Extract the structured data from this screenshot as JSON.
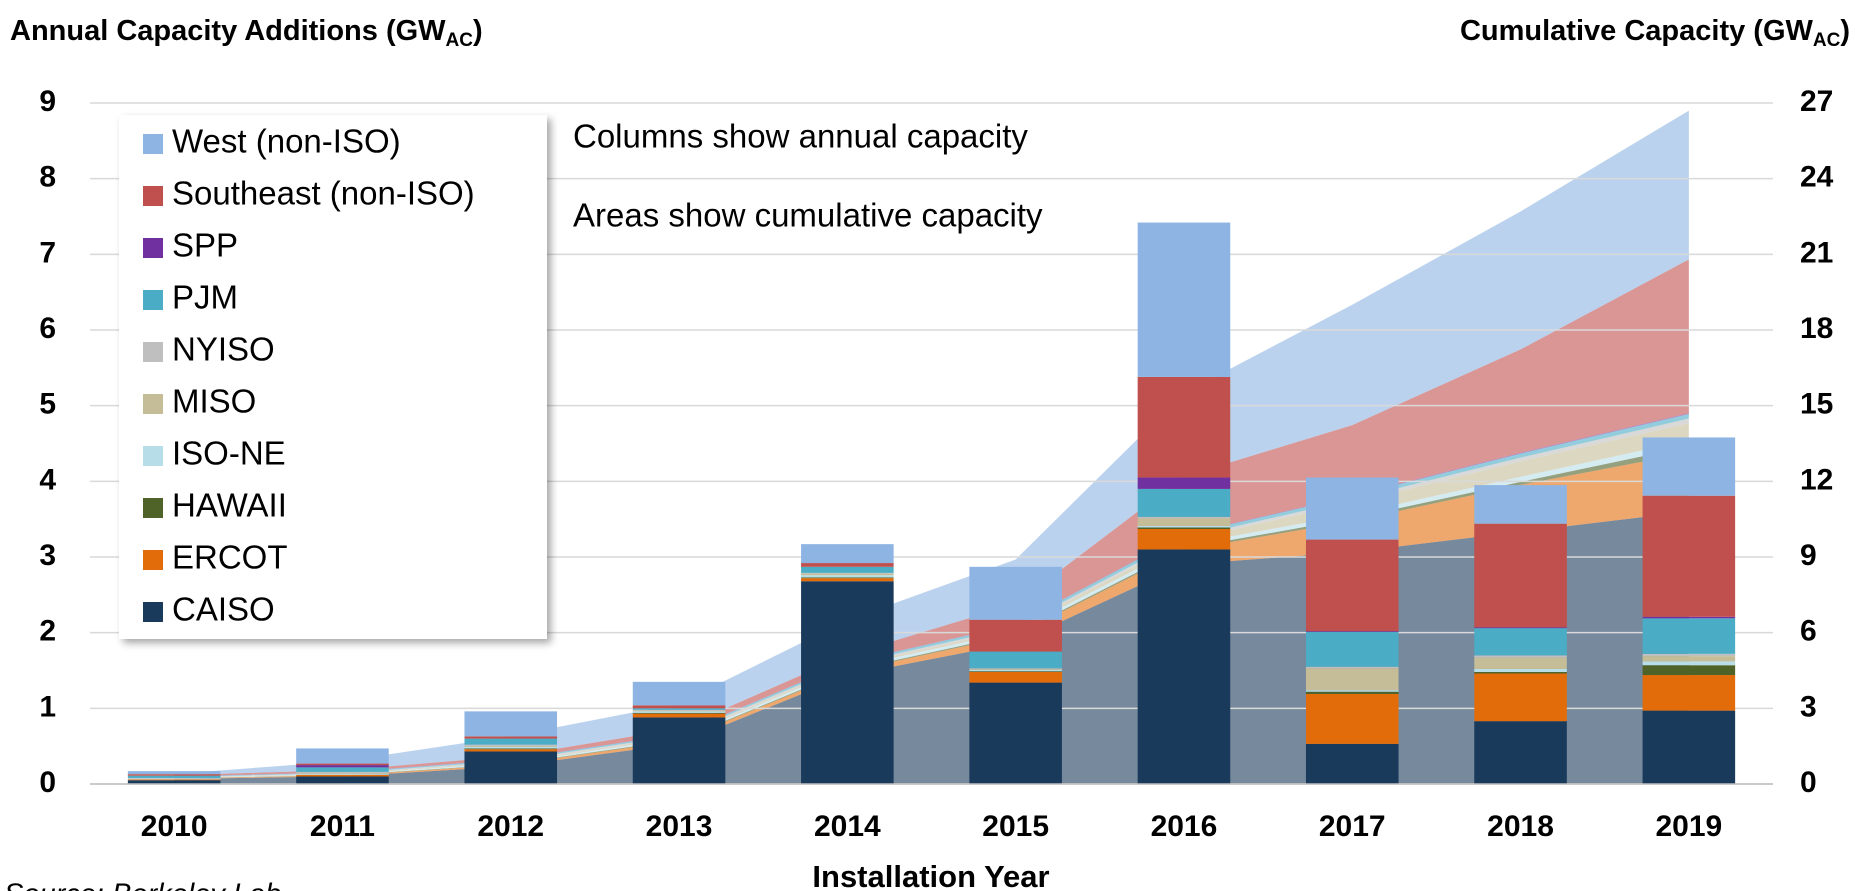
{
  "chart_data": {
    "type": "bar",
    "ylabel": {
      "text": "Annual Capacity Additions (GW",
      "sub": "AC",
      "end": ")"
    },
    "y2label": {
      "text": "Cumulative Capacity (GW",
      "sub": "AC",
      "end": ")"
    },
    "xlabel": "Installation Year",
    "annotations": [
      "Columns show annual capacity",
      "Areas show cumulative capacity"
    ],
    "source": "Source: Berkeley Lab",
    "categories": [
      "2010",
      "2011",
      "2012",
      "2013",
      "2014",
      "2015",
      "2016",
      "2017",
      "2018",
      "2019"
    ],
    "ylim": [
      0,
      9
    ],
    "yticks": [
      0,
      1,
      2,
      3,
      4,
      5,
      6,
      7,
      8,
      9
    ],
    "y2lim": [
      0,
      27
    ],
    "y2ticks": [
      0,
      3,
      6,
      9,
      12,
      15,
      18,
      21,
      24,
      27
    ],
    "grid": true,
    "legend": "upper left",
    "series": [
      {
        "name": "CAISO",
        "color": "#1a3a5c",
        "values": [
          0.05,
          0.1,
          0.43,
          0.88,
          2.68,
          1.34,
          3.1,
          0.53,
          0.83,
          0.97
        ],
        "cumulative": {
          "axis": "y2",
          "values": [
            0.2,
            0.3,
            0.7,
            1.6,
            4.3,
            5.6,
            8.7,
            9.2,
            10.0,
            10.8
          ]
        }
      },
      {
        "name": "ERCOT",
        "color": "#e36c0a",
        "values": [
          0.01,
          0.02,
          0.03,
          0.05,
          0.04,
          0.14,
          0.27,
          0.66,
          0.63,
          0.47
        ],
        "cumulative": {
          "axis": "y2",
          "values": [
            0.02,
            0.04,
            0.07,
            0.12,
            0.16,
            0.3,
            0.57,
            1.23,
            1.86,
            2.33
          ]
        }
      },
      {
        "name": "HAWAII",
        "color": "#4f6228",
        "values": [
          0,
          0,
          0.01,
          0.01,
          0.01,
          0.01,
          0.02,
          0.03,
          0.02,
          0.13
        ],
        "cumulative": {
          "axis": "y2",
          "values": [
            0.01,
            0.01,
            0.02,
            0.03,
            0.04,
            0.05,
            0.07,
            0.1,
            0.12,
            0.25
          ]
        }
      },
      {
        "name": "ISO-NE",
        "color": "#b7dee8",
        "values": [
          0.01,
          0.01,
          0.02,
          0.02,
          0.03,
          0.02,
          0.02,
          0.02,
          0.04,
          0.05
        ],
        "cumulative": {
          "axis": "y2",
          "values": [
            0.02,
            0.03,
            0.05,
            0.07,
            0.1,
            0.12,
            0.14,
            0.16,
            0.2,
            0.25
          ]
        }
      },
      {
        "name": "MISO",
        "color": "#c4bd97",
        "values": [
          0,
          0.01,
          0.01,
          0.01,
          0.02,
          0.01,
          0.1,
          0.29,
          0.15,
          0.07
        ],
        "cumulative": {
          "axis": "y2",
          "values": [
            0.01,
            0.02,
            0.03,
            0.04,
            0.06,
            0.07,
            0.17,
            0.46,
            0.61,
            0.68
          ]
        }
      },
      {
        "name": "NYISO",
        "color": "#bfbfbf",
        "values": [
          0.01,
          0.02,
          0.02,
          0.01,
          0.01,
          0.01,
          0.02,
          0.02,
          0.03,
          0.03
        ],
        "cumulative": {
          "axis": "y2",
          "values": [
            0.01,
            0.03,
            0.05,
            0.06,
            0.07,
            0.08,
            0.1,
            0.12,
            0.15,
            0.18
          ]
        }
      },
      {
        "name": "PJM",
        "color": "#4bacc6",
        "values": [
          0.03,
          0.06,
          0.08,
          0.02,
          0.08,
          0.22,
          0.37,
          0.46,
          0.36,
          0.47
        ],
        "cumulative": {
          "axis": "y2",
          "values": [
            0.02,
            0.03,
            0.05,
            0.06,
            0.08,
            0.1,
            0.12,
            0.14,
            0.16,
            0.18
          ]
        }
      },
      {
        "name": "SPP",
        "color": "#7030a0",
        "values": [
          0,
          0.03,
          0,
          0,
          0,
          0,
          0.15,
          0.01,
          0.01,
          0.02
        ],
        "cumulative": {
          "axis": "y2",
          "values": [
            0.01,
            0.01,
            0.01,
            0.01,
            0.01,
            0.01,
            0.02,
            0.02,
            0.03,
            0.03
          ]
        }
      },
      {
        "name": "Southeast (non-ISO)",
        "color": "#c0504d",
        "values": [
          0.02,
          0.02,
          0.03,
          0.04,
          0.05,
          0.42,
          1.33,
          1.21,
          1.37,
          1.6
        ],
        "cumulative": {
          "axis": "y2",
          "values": [
            0.05,
            0.08,
            0.12,
            0.2,
            0.3,
            0.8,
            2.3,
            2.8,
            4.1,
            6.1
          ]
        }
      },
      {
        "name": "West (non-ISO)",
        "color": "#8eb4e3",
        "values": [
          0.04,
          0.2,
          0.33,
          0.31,
          0.25,
          0.7,
          2.04,
          0.82,
          0.51,
          0.77
        ],
        "cumulative": {
          "axis": "y2",
          "values": [
            0.05,
            0.35,
            0.8,
            1.0,
            1.38,
            1.77,
            3.31,
            4.77,
            5.47,
            5.9
          ]
        }
      }
    ]
  }
}
